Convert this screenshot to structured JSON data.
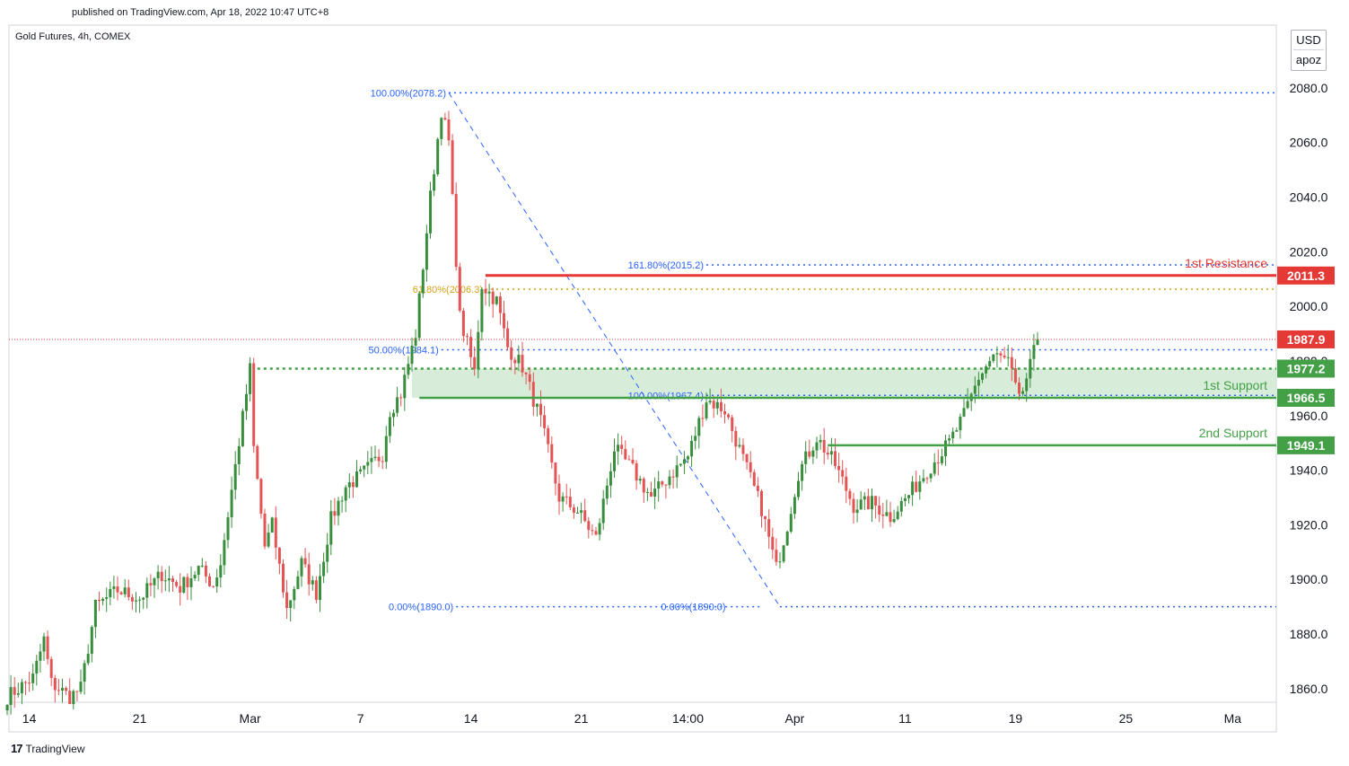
{
  "header": {
    "published": "published on TradingView.com, Apr 18, 2022 10:47 UTC+8",
    "symbol": "Gold Futures, 4h, COMEX"
  },
  "currency": {
    "unit": "USD",
    "user": "apoz"
  },
  "footer": {
    "brand": "TradingView"
  },
  "colors": {
    "up": "#388e3c",
    "down": "#e35454",
    "fib": "#2962ff",
    "fib_gold": "#d4a017",
    "resistance": "#e53935",
    "support": "#43a047",
    "support_zone": "#c8e6c9",
    "last_price": "#e53935"
  },
  "chart_data": {
    "type": "candlestick",
    "title": "Gold Futures, 4h, COMEX",
    "ylim": [
      1855,
      2103
    ],
    "y_ticks": [
      1860,
      1880,
      1900,
      1920,
      1940,
      1960,
      1980,
      2000,
      2020,
      2040,
      2060,
      2080
    ],
    "y_tick_labels": [
      "1860.0",
      "1880.0",
      "1900.0",
      "1920.0",
      "1940.0",
      "1960.0",
      "1980.0",
      "2000.0",
      "2020.0",
      "2040.0",
      "2060.0",
      "2080.0"
    ],
    "x_ticks": [
      {
        "label": "14",
        "bar": 6
      },
      {
        "label": "21",
        "bar": 36
      },
      {
        "label": "Mar",
        "bar": 66
      },
      {
        "label": "7",
        "bar": 96
      },
      {
        "label": "14",
        "bar": 126
      },
      {
        "label": "21",
        "bar": 156
      },
      {
        "label": "14:00",
        "bar": 185
      },
      {
        "label": "Apr",
        "bar": 214
      },
      {
        "label": "11",
        "bar": 244
      },
      {
        "label": "19",
        "bar": 274
      },
      {
        "label": "25",
        "bar": 304
      },
      {
        "label": "Ma",
        "bar": 333
      }
    ],
    "bar_count": 336,
    "waypoints": [
      [
        0,
        1857
      ],
      [
        7,
        1864
      ],
      [
        10,
        1878
      ],
      [
        12,
        1862
      ],
      [
        17,
        1857
      ],
      [
        20,
        1860
      ],
      [
        24,
        1890
      ],
      [
        30,
        1896
      ],
      [
        36,
        1893
      ],
      [
        42,
        1902
      ],
      [
        47,
        1897
      ],
      [
        52,
        1904
      ],
      [
        56,
        1898
      ],
      [
        58,
        1906
      ],
      [
        66,
        1977
      ],
      [
        67,
        1948
      ],
      [
        70,
        1912
      ],
      [
        72,
        1920
      ],
      [
        76,
        1889
      ],
      [
        80,
        1906
      ],
      [
        84,
        1895
      ],
      [
        88,
        1922
      ],
      [
        92,
        1934
      ],
      [
        96,
        1938
      ],
      [
        102,
        1946
      ],
      [
        104,
        1962
      ],
      [
        107,
        1968
      ],
      [
        111,
        1990
      ],
      [
        115,
        2040
      ],
      [
        118,
        2072
      ],
      [
        120,
        2060
      ],
      [
        123,
        1996
      ],
      [
        127,
        1976
      ],
      [
        129,
        2008
      ],
      [
        133,
        2002
      ],
      [
        136,
        1985
      ],
      [
        140,
        1978
      ],
      [
        145,
        1958
      ],
      [
        150,
        1930
      ],
      [
        155,
        1925
      ],
      [
        160,
        1915
      ],
      [
        165,
        1948
      ],
      [
        170,
        1940
      ],
      [
        175,
        1930
      ],
      [
        180,
        1938
      ],
      [
        185,
        1945
      ],
      [
        190,
        1966
      ],
      [
        195,
        1962
      ],
      [
        200,
        1944
      ],
      [
        205,
        1926
      ],
      [
        209,
        1904
      ],
      [
        212,
        1920
      ],
      [
        215,
        1939
      ],
      [
        220,
        1952
      ],
      [
        225,
        1942
      ],
      [
        230,
        1927
      ],
      [
        235,
        1928
      ],
      [
        240,
        1923
      ],
      [
        245,
        1931
      ],
      [
        250,
        1940
      ],
      [
        256,
        1950
      ],
      [
        260,
        1960
      ],
      [
        264,
        1974
      ],
      [
        268,
        1982
      ],
      [
        272,
        1980
      ],
      [
        275,
        1965
      ],
      [
        278,
        1978
      ],
      [
        280,
        1988
      ]
    ],
    "last_price": 1987.9,
    "last_price_label": "1987.9",
    "annotations": [
      {
        "name": "1st Resistance",
        "value": 2011.3,
        "label": "2011.3"
      },
      {
        "name": "1st Support",
        "value": 1966.5,
        "label": "1966.5"
      },
      {
        "name": "1st Support zone top",
        "value": 1977.2,
        "label": "1977.2"
      },
      {
        "name": "2nd Support",
        "value": 1949.1,
        "label": "1949.1"
      }
    ],
    "fibonacci": [
      {
        "label": "100.00%(2078.2)",
        "value": 2078.2
      },
      {
        "label": "61.80%(2006.3)",
        "value": 2006.3
      },
      {
        "label": "50.00%(1984.1)",
        "value": 1984.1
      },
      {
        "label": "0.00%(1890.0)",
        "value": 1890.0
      },
      {
        "label": "161.80%(2015.2)",
        "value": 2015.2
      },
      {
        "label": "100.00%(1967.4)",
        "value": 1967.4
      },
      {
        "label": "0.00%(1890.0)",
        "value": 1890.0
      }
    ],
    "fib_trend": {
      "from": {
        "bar": 120,
        "value": 2078.2
      },
      "to": {
        "bar": 210,
        "value": 1890.0
      }
    },
    "texts": {
      "res1": "1st Resistance",
      "sup1": "1st Support",
      "sup2": "2nd Support"
    }
  }
}
